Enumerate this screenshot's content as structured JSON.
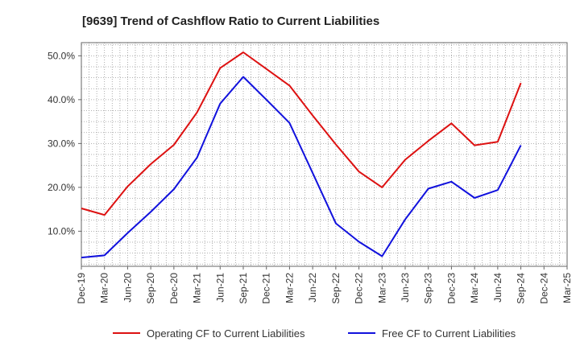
{
  "chart_data": {
    "type": "line",
    "title": "[9639]  Trend of Cashflow Ratio to Current Liabilities",
    "x": [
      "Dec-19",
      "Mar-20",
      "Jun-20",
      "Sep-20",
      "Dec-20",
      "Mar-21",
      "Jun-21",
      "Sep-21",
      "Dec-21",
      "Mar-22",
      "Jun-22",
      "Sep-22",
      "Dec-22",
      "Mar-23",
      "Jun-23",
      "Sep-23",
      "Dec-23",
      "Mar-24",
      "Jun-24",
      "Sep-24",
      "Dec-24",
      "Mar-25"
    ],
    "series": [
      {
        "name": "Operating CF to Current Liabilities",
        "color": "#dd1111",
        "values": [
          15.2,
          13.7,
          20.2,
          25.3,
          29.7,
          37.1,
          47.2,
          50.8,
          47.0,
          43.2,
          36.4,
          29.8,
          23.6,
          20.0,
          26.3,
          30.6,
          34.6,
          29.6,
          30.4,
          43.8,
          null,
          null
        ]
      },
      {
        "name": "Free CF to Current Liabilities",
        "color": "#1111dd",
        "values": [
          4.0,
          4.5,
          9.6,
          14.4,
          19.6,
          26.8,
          39.1,
          45.2,
          40.0,
          34.7,
          23.3,
          11.8,
          7.6,
          4.3,
          12.7,
          19.7,
          21.3,
          17.6,
          19.4,
          29.6,
          null,
          null
        ]
      }
    ],
    "yticks": [
      "10.0%",
      "20.0%",
      "30.0%",
      "40.0%",
      "50.0%"
    ],
    "ytick_values": [
      10,
      20,
      30,
      40,
      50
    ],
    "ylim": [
      2,
      53
    ],
    "grid": true,
    "legend": "bottom"
  }
}
